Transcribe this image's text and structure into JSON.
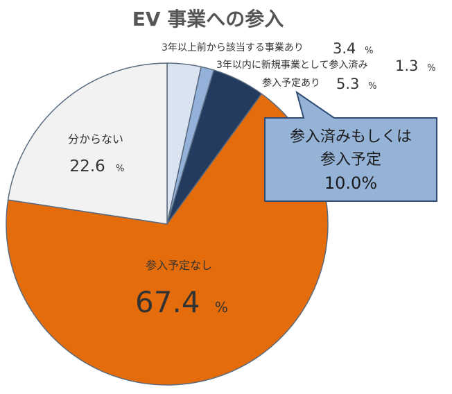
{
  "chart_data": {
    "type": "pie",
    "title": "EV 事業への参入",
    "slices": [
      {
        "label": "3年以上前から該当する事業あり",
        "value": 3.4,
        "value_text": "3.4",
        "color": "#dae3f0"
      },
      {
        "label": "3年以内に新規事業として参入済み",
        "value": 1.3,
        "value_text": "1.3",
        "color": "#93b1d9"
      },
      {
        "label": "参入予定あり",
        "value": 5.3,
        "value_text": "5.3",
        "color": "#223b5e"
      },
      {
        "label": "参入予定なし",
        "value": 67.4,
        "value_text": "67.4",
        "color": "#e46c0a"
      },
      {
        "label": "分からない",
        "value": 22.6,
        "value_text": "22.6",
        "color": "#f2f2f2"
      }
    ],
    "unit": "%",
    "callout": {
      "lines": [
        "参入済みもしくは",
        "参入予定",
        "10.0%"
      ],
      "background": "#95b3d7",
      "border": "#2f4d74"
    }
  }
}
